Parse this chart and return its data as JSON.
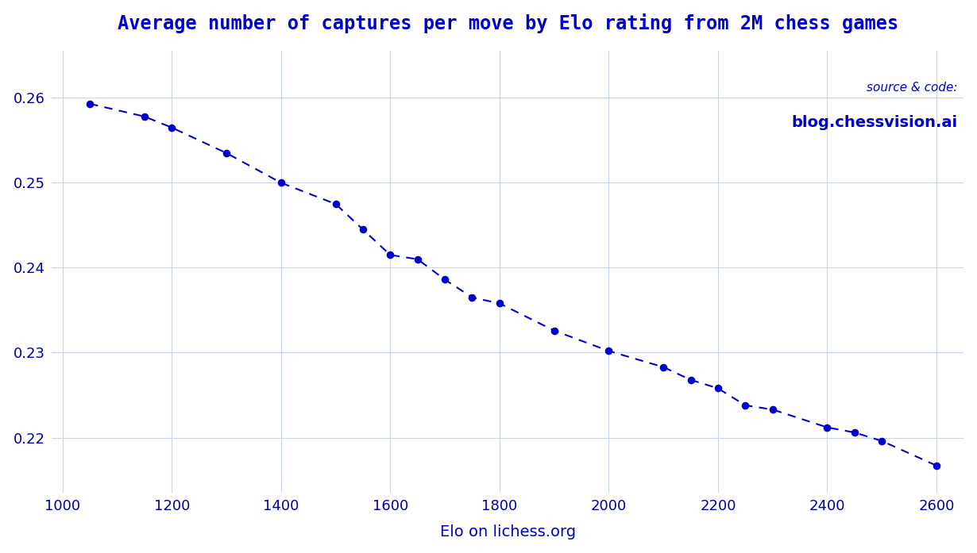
{
  "x": [
    1050,
    1150,
    1200,
    1300,
    1400,
    1500,
    1550,
    1600,
    1650,
    1700,
    1750,
    1800,
    1900,
    2000,
    2100,
    2150,
    2200,
    2250,
    2300,
    2400,
    2450,
    2500,
    2600
  ],
  "y": [
    0.2593,
    0.2578,
    0.2565,
    0.2535,
    0.25,
    0.2475,
    0.2445,
    0.2415,
    0.241,
    0.2386,
    0.2365,
    0.2358,
    0.2326,
    0.2302,
    0.2283,
    0.2268,
    0.2258,
    0.2238,
    0.2233,
    0.2212,
    0.2206,
    0.2196,
    0.2167
  ],
  "title": "Average number of captures per move by Elo rating from 2M chess games",
  "xlabel": "Elo on lichess.org",
  "source_label": "source & code:",
  "source_url": "blog.chessvision.ai",
  "color": "#0000cc",
  "bg_color": "#ffffff",
  "grid_color": "#c8d4f0",
  "xlim": [
    980,
    2650
  ],
  "ylim": [
    0.2135,
    0.2655
  ],
  "yticks": [
    0.22,
    0.23,
    0.24,
    0.25,
    0.26
  ],
  "xticks": [
    1000,
    1200,
    1400,
    1600,
    1800,
    2000,
    2200,
    2400,
    2600
  ],
  "title_color": "#0000cc",
  "xlabel_color": "#0000cc",
  "tick_color": "#0000aa"
}
